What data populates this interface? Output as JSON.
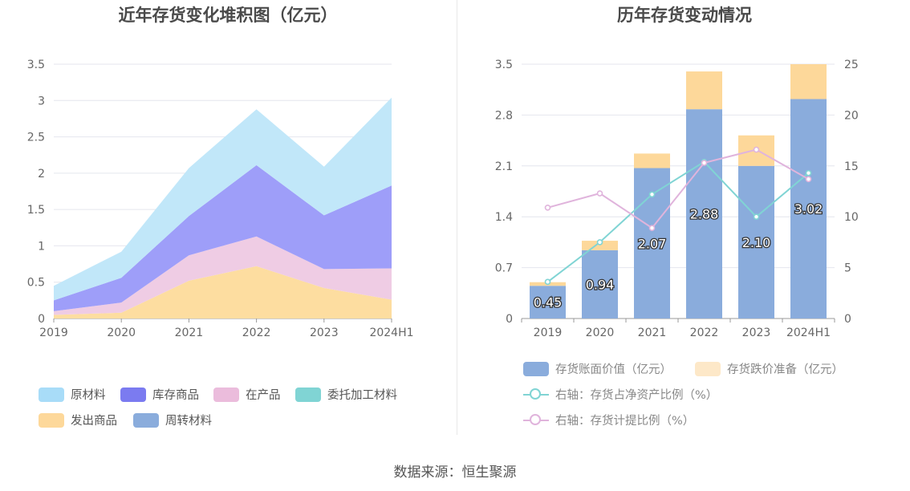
{
  "source": "数据来源：恒生聚源",
  "chart_data": [
    {
      "type": "area",
      "stacked": true,
      "title": "近年存货变化堆积图（亿元）",
      "categories": [
        "2019",
        "2020",
        "2021",
        "2022",
        "2023",
        "2024H1"
      ],
      "ylim": [
        0,
        3.5
      ],
      "yticks": [
        "0",
        "0.5",
        "1",
        "1.5",
        "2",
        "2.5",
        "3",
        "3.5"
      ],
      "grid": true,
      "legend_position": "bottom",
      "series": [
        {
          "name": "发出商品",
          "color": "#fdddA0",
          "values": [
            0.05,
            0.08,
            0.52,
            0.72,
            0.42,
            0.26
          ]
        },
        {
          "name": "委托加工材料",
          "color": "#80d4d4",
          "values": [
            0.0,
            0.0,
            0.0,
            0.0,
            0.0,
            0.0
          ]
        },
        {
          "name": "在产品",
          "color": "#efcce4",
          "values": [
            0.05,
            0.14,
            0.35,
            0.41,
            0.26,
            0.43
          ]
        },
        {
          "name": "库存商品",
          "color": "#9e9ef9",
          "values": [
            0.15,
            0.34,
            0.54,
            0.98,
            0.74,
            1.14
          ]
        },
        {
          "name": "周转材料",
          "color": "#8aacdc",
          "values": [
            0.0,
            0.0,
            0.0,
            0.0,
            0.0,
            0.0
          ]
        },
        {
          "name": "原材料",
          "color": "#c1e7f9",
          "values": [
            0.2,
            0.36,
            0.66,
            0.77,
            0.67,
            1.21
          ]
        }
      ],
      "legend": [
        {
          "name": "原材料",
          "color": "#a8dcf8"
        },
        {
          "name": "库存商品",
          "color": "#7b7bf0"
        },
        {
          "name": "在产品",
          "color": "#ebbcdc"
        },
        {
          "name": "委托加工材料",
          "color": "#80d4d4"
        },
        {
          "name": "发出商品",
          "color": "#fdd89a"
        },
        {
          "name": "周转材料",
          "color": "#8aacdc"
        }
      ]
    },
    {
      "type": "bar",
      "stacked": true,
      "title": "历年存货变动情况",
      "categories": [
        "2019",
        "2020",
        "2021",
        "2022",
        "2023",
        "2024H1"
      ],
      "ylim": [
        0,
        3.5
      ],
      "yticks": [
        "0",
        "0.7",
        "1.4",
        "2.1",
        "2.8",
        "3.5"
      ],
      "y2lim": [
        0,
        25
      ],
      "y2ticks": [
        "0",
        "5",
        "10",
        "15",
        "20",
        "25"
      ],
      "grid": true,
      "legend_position": "bottom",
      "series": [
        {
          "name": "存货账面价值（亿元）",
          "color": "#8aacdc",
          "axis": "left",
          "values": [
            0.45,
            0.94,
            2.07,
            2.88,
            2.1,
            3.02
          ],
          "labels": [
            "0.45",
            "0.94",
            "2.07",
            "2.88",
            "2.10",
            "3.02"
          ]
        },
        {
          "name": "存货跌价准备（亿元）",
          "color": "#fdd89a",
          "legend_color": "#fde8c8",
          "axis": "left",
          "values": [
            0.05,
            0.13,
            0.2,
            0.52,
            0.42,
            0.48
          ]
        }
      ],
      "lines": [
        {
          "name": "右轴：存货占净资产比例（%）",
          "color": "#80d4d4",
          "axis": "right",
          "values": [
            3.6,
            7.5,
            12.2,
            15.4,
            10.0,
            14.3
          ]
        },
        {
          "name": "右轴：存货计提比例（%）",
          "color": "#e0b4dc",
          "axis": "right",
          "values": [
            10.9,
            12.3,
            8.9,
            15.3,
            16.6,
            13.7
          ]
        }
      ]
    }
  ]
}
